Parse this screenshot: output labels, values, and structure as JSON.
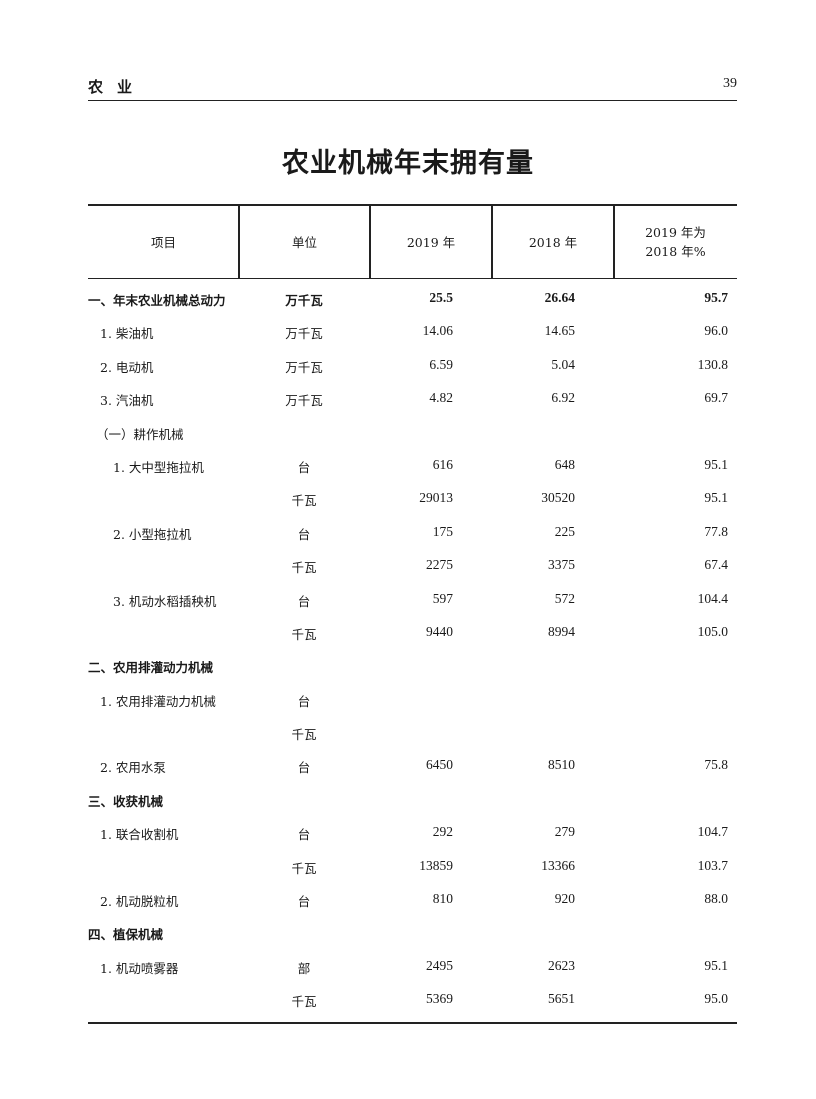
{
  "running_head": {
    "section": "农业",
    "page_number": "39"
  },
  "title": "农业机械年末拥有量",
  "table": {
    "headers": [
      "项目",
      "单位",
      "2019 年",
      "2018 年",
      "2019 年为",
      "2018 年%"
    ],
    "rows": [
      {
        "name": "一、年末农业机械总动力",
        "unit": "万千瓦",
        "y2019": "25.5",
        "y2018": "26.64",
        "pct": "95.7",
        "level": 0,
        "bold": true
      },
      {
        "name": "1. 柴油机",
        "unit": "万千瓦",
        "y2019": "14.06",
        "y2018": "14.65",
        "pct": "96.0",
        "level": 1
      },
      {
        "name": "2. 电动机",
        "unit": "万千瓦",
        "y2019": "6.59",
        "y2018": "5.04",
        "pct": "130.8",
        "level": 1
      },
      {
        "name": "3. 汽油机",
        "unit": "万千瓦",
        "y2019": "4.82",
        "y2018": "6.92",
        "pct": "69.7",
        "level": 1
      },
      {
        "name": "（一）耕作机械",
        "unit": "",
        "y2019": "",
        "y2018": "",
        "pct": "",
        "level": "s"
      },
      {
        "name": "1. 大中型拖拉机",
        "unit": "台",
        "y2019": "616",
        "y2018": "648",
        "pct": "95.1",
        "level": 2
      },
      {
        "name": "",
        "unit": "千瓦",
        "y2019": "29013",
        "y2018": "30520",
        "pct": "95.1",
        "level": 2
      },
      {
        "name": "2. 小型拖拉机",
        "unit": "台",
        "y2019": "175",
        "y2018": "225",
        "pct": "77.8",
        "level": 2
      },
      {
        "name": "",
        "unit": "千瓦",
        "y2019": "2275",
        "y2018": "3375",
        "pct": "67.4",
        "level": 2
      },
      {
        "name": "3. 机动水稻插秧机",
        "unit": "台",
        "y2019": "597",
        "y2018": "572",
        "pct": "104.4",
        "level": 2
      },
      {
        "name": "",
        "unit": "千瓦",
        "y2019": "9440",
        "y2018": "8994",
        "pct": "105.0",
        "level": 2
      },
      {
        "name": "二、农用排灌动力机械",
        "unit": "",
        "y2019": "",
        "y2018": "",
        "pct": "",
        "level": 0,
        "bold": true
      },
      {
        "name": "1. 农用排灌动力机械",
        "unit": "台",
        "y2019": "",
        "y2018": "",
        "pct": "",
        "level": 1
      },
      {
        "name": "",
        "unit": "千瓦",
        "y2019": "",
        "y2018": "",
        "pct": "",
        "level": 1
      },
      {
        "name": "2. 农用水泵",
        "unit": "台",
        "y2019": "6450",
        "y2018": "8510",
        "pct": "75.8",
        "level": 1
      },
      {
        "name": "三、收获机械",
        "unit": "",
        "y2019": "",
        "y2018": "",
        "pct": "",
        "level": 0,
        "bold": true
      },
      {
        "name": "1. 联合收割机",
        "unit": "台",
        "y2019": "292",
        "y2018": "279",
        "pct": "104.7",
        "level": 1
      },
      {
        "name": "",
        "unit": "千瓦",
        "y2019": "13859",
        "y2018": "13366",
        "pct": "103.7",
        "level": 1
      },
      {
        "name": "2. 机动脱粒机",
        "unit": "台",
        "y2019": "810",
        "y2018": "920",
        "pct": "88.0",
        "level": 1
      },
      {
        "name": "四、植保机械",
        "unit": "",
        "y2019": "",
        "y2018": "",
        "pct": "",
        "level": 0,
        "bold": true
      },
      {
        "name": "1. 机动喷雾器",
        "unit": "部",
        "y2019": "2495",
        "y2018": "2623",
        "pct": "95.1",
        "level": 1
      },
      {
        "name": "",
        "unit": "千瓦",
        "y2019": "5369",
        "y2018": "5651",
        "pct": "95.0",
        "level": 1
      }
    ]
  }
}
